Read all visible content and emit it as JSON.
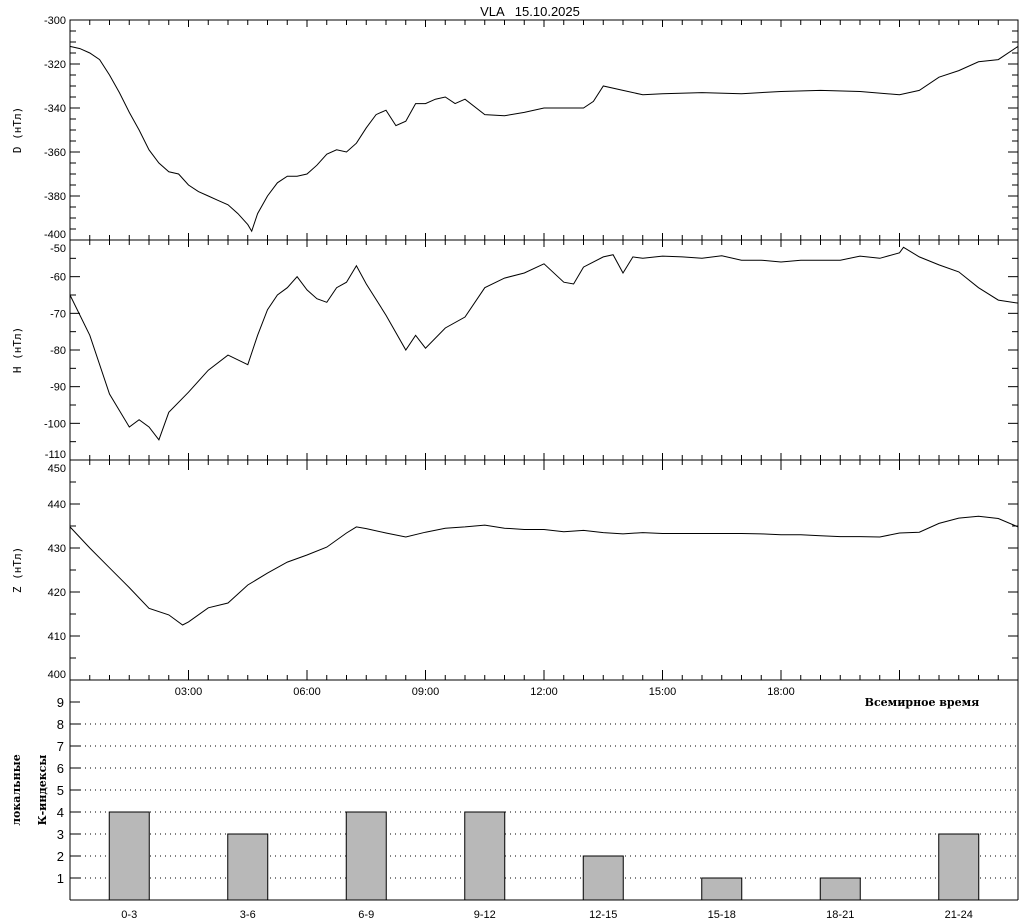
{
  "chart_data": [
    {
      "type": "line",
      "title": "VLA   15.10.2025",
      "ylabel": "D (нТл)",
      "ylim": [
        -400,
        -300
      ],
      "yticks": [
        "-300",
        "-320",
        "-340",
        "-360",
        "-380",
        "-400"
      ],
      "xlim": [
        0,
        24
      ],
      "series": [
        {
          "x": [
            0,
            0.25,
            0.5,
            0.75,
            1,
            1.25,
            1.5,
            1.75,
            2,
            2.25,
            2.5,
            2.75,
            3,
            3.25,
            3.5,
            3.75,
            4,
            4.25,
            4.5,
            4.6,
            4.75,
            5,
            5.25,
            5.5,
            5.75,
            6,
            6.25,
            6.5,
            6.75,
            7,
            7.25,
            7.5,
            7.75,
            8,
            8.25,
            8.5,
            8.75,
            9,
            9.25,
            9.5,
            9.75,
            10,
            10.5,
            11,
            11.5,
            12,
            12.5,
            13,
            13.25,
            13.5,
            14,
            14.5,
            15,
            16,
            17,
            18,
            19,
            20,
            21,
            21.5,
            22,
            22.5,
            23,
            23.5,
            24
          ],
          "y": [
            -312,
            -313,
            -315,
            -318,
            -325,
            -333,
            -342,
            -350,
            -359,
            -365,
            -369,
            -370,
            -375,
            -378,
            -380,
            -382,
            -384,
            -388,
            -393,
            -396,
            -388,
            -380,
            -374,
            -371,
            -371,
            -370,
            -366,
            -361,
            -359,
            -360,
            -356,
            -349,
            -343,
            -341,
            -348,
            -346,
            -338,
            -338,
            -336,
            -335,
            -338,
            -336,
            -343,
            -343.5,
            -342,
            -340,
            -340,
            -340,
            -337,
            -330,
            -332,
            -334,
            -333.5,
            -333,
            -333.5,
            -332.5,
            -332,
            -332.5,
            -334,
            -332,
            -326,
            -323,
            -319,
            -318,
            -312
          ]
        }
      ]
    },
    {
      "type": "line",
      "ylabel": "H (нТл)",
      "ylim": [
        -110,
        -50
      ],
      "yticks": [
        "-50",
        "-60",
        "-70",
        "-80",
        "-90",
        "-100",
        "-110"
      ],
      "xlim": [
        0,
        24
      ],
      "series": [
        {
          "x": [
            0,
            0.5,
            1,
            1.5,
            1.75,
            2,
            2.25,
            2.5,
            3,
            3.5,
            4,
            4.5,
            4.75,
            5,
            5.25,
            5.5,
            5.75,
            6,
            6.25,
            6.5,
            6.75,
            7,
            7.25,
            7.5,
            8,
            8.5,
            8.75,
            9,
            9.5,
            10,
            10.5,
            11,
            11.5,
            12,
            12.5,
            12.75,
            13,
            13.5,
            13.75,
            14,
            14.25,
            14.5,
            15,
            15.5,
            16,
            16.5,
            17,
            17.5,
            18,
            18.5,
            19,
            19.5,
            20,
            20.5,
            21,
            21.1,
            21.5,
            22,
            22.5,
            23,
            23.5,
            24
          ],
          "y": [
            -65,
            -76,
            -92,
            -101,
            -99,
            -101,
            -104.5,
            -97,
            -91.5,
            -85.5,
            -81.4,
            -84,
            -76,
            -69,
            -65,
            -63,
            -60,
            -63.6,
            -66,
            -67,
            -63,
            -61.5,
            -57,
            -62,
            -70.5,
            -80,
            -76,
            -79.5,
            -74,
            -71,
            -63,
            -60.4,
            -59,
            -56.5,
            -61.5,
            -62,
            -57.4,
            -54.6,
            -54,
            -59,
            -54.6,
            -55,
            -54.4,
            -54.6,
            -55,
            -54.3,
            -55.5,
            -55.5,
            -56,
            -55.5,
            -55.5,
            -55.5,
            -54.4,
            -55,
            -53.5,
            -52,
            -54.6,
            -56.8,
            -58.7,
            -63,
            -66.4,
            -67.2
          ]
        }
      ]
    },
    {
      "type": "line",
      "ylabel": "Z (нТл)",
      "ylim": [
        400,
        450
      ],
      "yticks": [
        "450",
        "440",
        "430",
        "420",
        "410",
        "400"
      ],
      "xlim": [
        0,
        24
      ],
      "xticks": [
        "03:00",
        "06:00",
        "09:00",
        "12:00",
        "15:00",
        "18:00"
      ],
      "xlabel": "Всемирное время",
      "series": [
        {
          "x": [
            0,
            0.5,
            1,
            1.5,
            2,
            2.5,
            2.85,
            3,
            3.5,
            4,
            4.5,
            5,
            5.5,
            6,
            6.5,
            7,
            7.25,
            7.5,
            8,
            8.5,
            9,
            9.5,
            10,
            10.5,
            11,
            11.5,
            12,
            12.5,
            13,
            13.5,
            14,
            14.5,
            15,
            16,
            17,
            17.5,
            18,
            18.5,
            19,
            19.5,
            20,
            20.5,
            21,
            21.5,
            22,
            22.5,
            23,
            23.5,
            24
          ],
          "y": [
            434.8,
            430,
            425.5,
            421,
            416.3,
            414.8,
            412.5,
            413.2,
            416.4,
            417.5,
            421.6,
            424.3,
            426.8,
            428.4,
            430.2,
            433.4,
            434.8,
            434.4,
            433.4,
            432.5,
            433.6,
            434.5,
            434.8,
            435.2,
            434.5,
            434.2,
            434.2,
            433.7,
            434,
            433.5,
            433.2,
            433.5,
            433.3,
            433.3,
            433.3,
            433.2,
            433,
            433,
            432.8,
            432.6,
            432.6,
            432.5,
            433.4,
            433.6,
            435.6,
            436.8,
            437.2,
            436.7,
            434.8
          ]
        }
      ]
    },
    {
      "type": "bar",
      "ylabel": [
        "локальные",
        "К-индексы"
      ],
      "ylim": [
        0,
        10
      ],
      "yticks": [
        "1",
        "2",
        "3",
        "4",
        "5",
        "6",
        "7",
        "8",
        "9"
      ],
      "grid": true,
      "categories": [
        "0-3",
        "3-6",
        "6-9",
        "9-12",
        "12-15",
        "15-18",
        "18-21",
        "21-24"
      ],
      "values": [
        4,
        3,
        4,
        4,
        2,
        1,
        1,
        3
      ],
      "bar_color": "#b8b8b8"
    }
  ]
}
